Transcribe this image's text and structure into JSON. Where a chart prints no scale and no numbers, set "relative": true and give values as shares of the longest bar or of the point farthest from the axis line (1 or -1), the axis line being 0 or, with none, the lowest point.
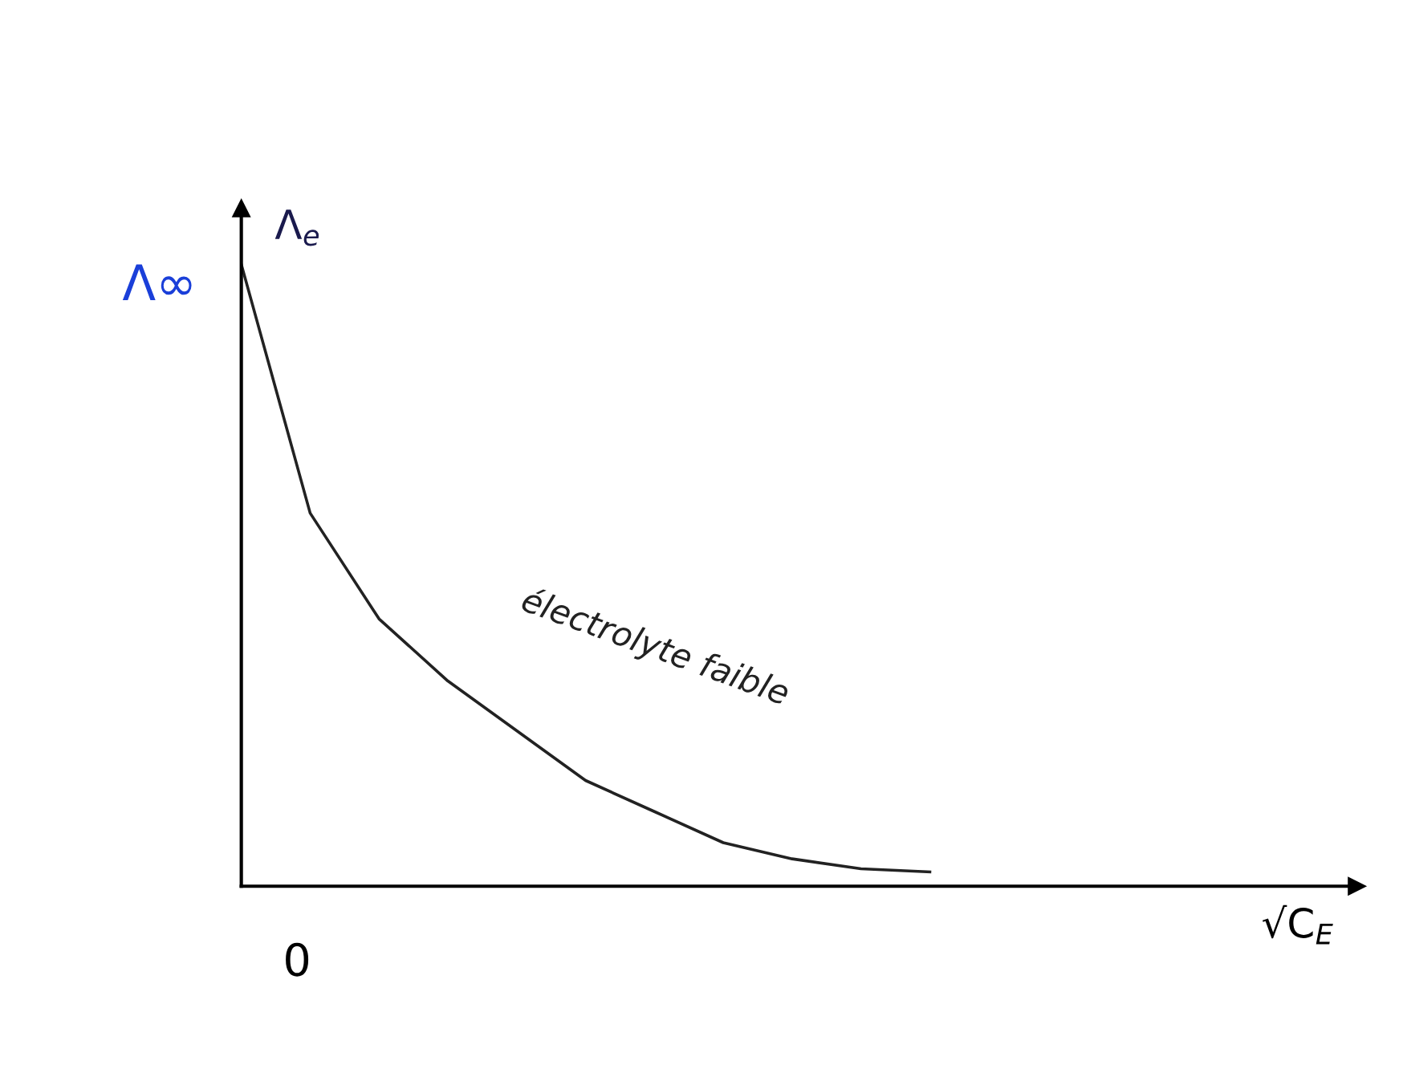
{
  "chart_data": {
    "type": "line",
    "relative": true,
    "ylabel": "Λ$_{e}$",
    "categories": [
      null,
      null,
      null,
      null,
      null,
      null,
      null,
      null,
      null,
      null,
      null
    ],
    "series": [
      {
        "name": "électrolyte faible",
        "color": "#222222",
        "values": [
          1.0,
          0.6,
          0.43,
          0.33,
          0.25,
          0.17,
          0.12,
          0.07,
          0.044,
          0.028,
          0.023
        ]
      }
    ],
    "annotations": [
      "Λ∞",
      "0",
      "√C$_{E}$"
    ],
    "legend": false,
    "marker": "none",
    "line_style": "solid"
  }
}
